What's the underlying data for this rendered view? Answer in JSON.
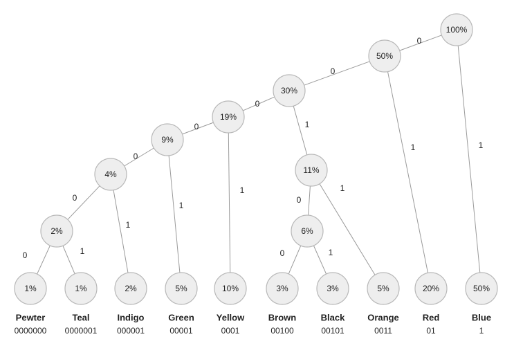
{
  "nodes": [
    {
      "id": "root",
      "label": "100%"
    },
    {
      "id": "n50",
      "label": "50%"
    },
    {
      "id": "n30",
      "label": "30%"
    },
    {
      "id": "n19",
      "label": "19%"
    },
    {
      "id": "n11",
      "label": "11%"
    },
    {
      "id": "n9",
      "label": "9%"
    },
    {
      "id": "n6",
      "label": "6%"
    },
    {
      "id": "n4",
      "label": "4%"
    },
    {
      "id": "n2",
      "label": "2%"
    },
    {
      "id": "pewter",
      "label": "1%"
    },
    {
      "id": "teal",
      "label": "1%"
    },
    {
      "id": "indigo",
      "label": "2%"
    },
    {
      "id": "green",
      "label": "5%"
    },
    {
      "id": "yellow",
      "label": "10%"
    },
    {
      "id": "brown",
      "label": "3%"
    },
    {
      "id": "black",
      "label": "3%"
    },
    {
      "id": "orange",
      "label": "5%"
    },
    {
      "id": "red",
      "label": "20%"
    },
    {
      "id": "blue",
      "label": "50%"
    }
  ],
  "edges": [
    {
      "from": "root",
      "to": "n50",
      "label": "0"
    },
    {
      "from": "root",
      "to": "blue",
      "label": "1"
    },
    {
      "from": "n50",
      "to": "n30",
      "label": "0"
    },
    {
      "from": "n50",
      "to": "red",
      "label": "1"
    },
    {
      "from": "n30",
      "to": "n19",
      "label": "0"
    },
    {
      "from": "n30",
      "to": "n11",
      "label": "1"
    },
    {
      "from": "n19",
      "to": "n9",
      "label": "0"
    },
    {
      "from": "n19",
      "to": "yellow",
      "label": "1"
    },
    {
      "from": "n9",
      "to": "n4",
      "label": "0"
    },
    {
      "from": "n9",
      "to": "green",
      "label": "1"
    },
    {
      "from": "n4",
      "to": "n2",
      "label": "0"
    },
    {
      "from": "n4",
      "to": "indigo",
      "label": "1"
    },
    {
      "from": "n2",
      "to": "pewter",
      "label": "0"
    },
    {
      "from": "n2",
      "to": "teal",
      "label": "1"
    },
    {
      "from": "n11",
      "to": "n6",
      "label": "0"
    },
    {
      "from": "n11",
      "to": "orange",
      "label": "1"
    },
    {
      "from": "n6",
      "to": "brown",
      "label": "0"
    },
    {
      "from": "n6",
      "to": "black",
      "label": "1"
    }
  ],
  "codes": [
    {
      "id": "pewter",
      "name": "Pewter",
      "code": "0000000"
    },
    {
      "id": "teal",
      "name": "Teal",
      "code": "0000001"
    },
    {
      "id": "indigo",
      "name": "Indigo",
      "code": "000001"
    },
    {
      "id": "green",
      "name": "Green",
      "code": "00001"
    },
    {
      "id": "yellow",
      "name": "Yellow",
      "code": "0001"
    },
    {
      "id": "brown",
      "name": "Brown",
      "code": "00100"
    },
    {
      "id": "black",
      "name": "Black",
      "code": "00101"
    },
    {
      "id": "orange",
      "name": "Orange",
      "code": "0011"
    },
    {
      "id": "red",
      "name": "Red",
      "code": "01"
    },
    {
      "id": "blue",
      "name": "Blue",
      "code": "1"
    }
  ]
}
